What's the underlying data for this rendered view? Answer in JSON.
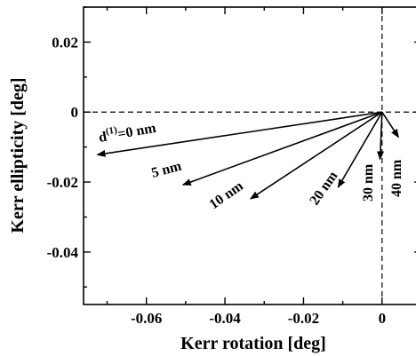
{
  "chart_data": {
    "type": "vector",
    "xlabel": "Kerr rotation [deg]",
    "ylabel": "Kerr ellipticity [deg]",
    "xlim": [
      -0.076,
      0.01
    ],
    "ylim": [
      -0.055,
      0.03
    ],
    "x_ticks": [
      {
        "value": -0.06,
        "label": "-0.06"
      },
      {
        "value": -0.04,
        "label": "-0.04"
      },
      {
        "value": -0.02,
        "label": "-0.02"
      },
      {
        "value": 0,
        "label": "0"
      }
    ],
    "y_ticks": [
      {
        "value": 0.02,
        "label": "0.02"
      },
      {
        "value": 0,
        "label": "0"
      },
      {
        "value": -0.02,
        "label": "-0.02"
      },
      {
        "value": -0.04,
        "label": "-0.04"
      }
    ],
    "reference_lines": {
      "x": 0,
      "y": 0,
      "style": "dashed"
    },
    "vectors": [
      {
        "x0": 0,
        "y0": 0,
        "x1": -0.0725,
        "y1": -0.0122,
        "label_main": "d",
        "label_sup": "(1)",
        "label_rest": "=0 nm"
      },
      {
        "x0": 0,
        "y0": 0,
        "x1": -0.0507,
        "y1": -0.0208,
        "label": "5 nm"
      },
      {
        "x0": 0,
        "y0": 0,
        "x1": -0.0335,
        "y1": -0.0248,
        "label": "10 nm"
      },
      {
        "x0": 0,
        "y0": 0,
        "x1": -0.0112,
        "y1": -0.0215,
        "label": "20 nm"
      },
      {
        "x0": 0,
        "y0": 0,
        "x1": -0.0005,
        "y1": -0.0135,
        "label": "30 nm"
      },
      {
        "x0": 0,
        "y0": 0,
        "x1": 0.0042,
        "y1": -0.0072,
        "label": "40 nm"
      }
    ]
  }
}
